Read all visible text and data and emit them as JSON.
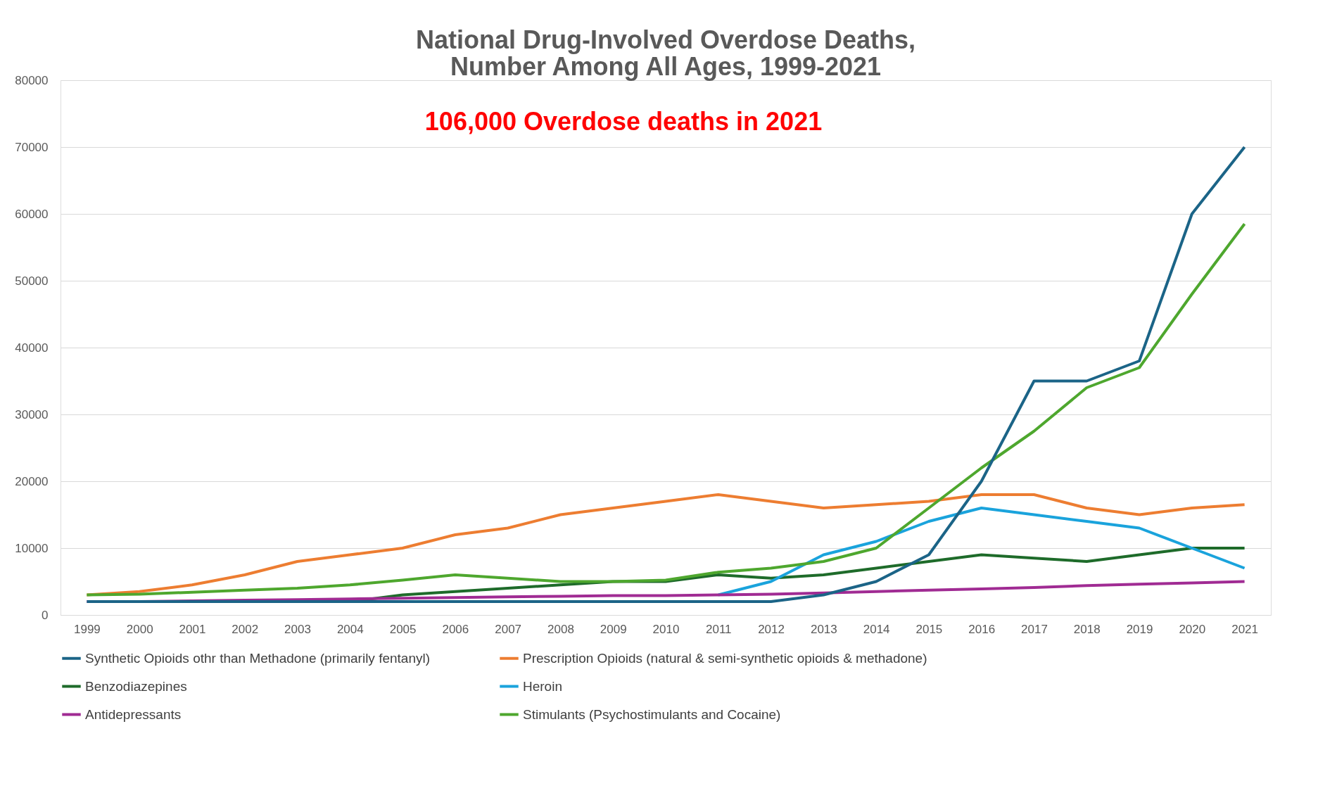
{
  "chart_data": {
    "type": "line",
    "title": [
      "National Drug-Involved Overdose Deaths,",
      "Number Among All Ages, 1999-2021"
    ],
    "annotations": [
      "106,000 Overdose deaths in 2021"
    ],
    "categories": [
      "1999",
      "2000",
      "2001",
      "2002",
      "2003",
      "2004",
      "2005",
      "2006",
      "2007",
      "2008",
      "2009",
      "2010",
      "2011",
      "2012",
      "2013",
      "2014",
      "2015",
      "2016",
      "2017",
      "2018",
      "2019",
      "2020",
      "2021"
    ],
    "series": [
      {
        "name": "Synthetic Opioids othr than Methadone (primarily fentanyl)",
        "color": "#1b6487",
        "values": [
          2000,
          2000,
          2000,
          2000,
          2000,
          2000,
          2000,
          2000,
          2000,
          2000,
          2000,
          2000,
          2000,
          2000,
          3000,
          5000,
          9000,
          20000,
          35000,
          35000,
          38000,
          60000,
          70000
        ]
      },
      {
        "name": "Prescription Opioids (natural & semi-synthetic opioids & methadone)",
        "color": "#ed7d31",
        "values": [
          3000,
          3500,
          4500,
          6000,
          8000,
          9000,
          10000,
          12000,
          13000,
          15000,
          16000,
          17000,
          18000,
          17000,
          16000,
          16500,
          17000,
          18000,
          18000,
          16000,
          15000,
          16000,
          16500
        ]
      },
      {
        "name": "Benzodiazepines",
        "color": "#1e6b2a",
        "values": [
          null,
          null,
          null,
          null,
          null,
          2000,
          3000,
          3500,
          4000,
          4500,
          5000,
          5000,
          6000,
          5500,
          6000,
          7000,
          8000,
          9000,
          8500,
          8000,
          9000,
          10000,
          10000
        ]
      },
      {
        "name": "Heroin",
        "color": "#1aa3dc",
        "values": [
          null,
          null,
          null,
          null,
          null,
          null,
          null,
          null,
          null,
          null,
          null,
          null,
          3000,
          5000,
          9000,
          11000,
          14000,
          16000,
          15000,
          14000,
          13000,
          10000,
          7000
        ]
      },
      {
        "name": "Antidepressants",
        "color": "#a02b93",
        "values": [
          2000,
          2000,
          2100,
          2200,
          2300,
          2400,
          2500,
          2600,
          2700,
          2800,
          2900,
          2900,
          3000,
          3100,
          3300,
          3500,
          3700,
          3900,
          4100,
          4400,
          4600,
          4800,
          5000
        ]
      },
      {
        "name": "Stimulants (Psychostimulants and Cocaine)",
        "color": "#4ea72e",
        "values": [
          3000,
          3100,
          3400,
          3700,
          4000,
          4500,
          5200,
          6000,
          5500,
          5000,
          5000,
          5200,
          6400,
          7000,
          8000,
          10000,
          16000,
          22000,
          27500,
          34000,
          37000,
          48000,
          58500
        ]
      }
    ],
    "ylim": [
      0,
      80000
    ],
    "yticks": [
      0,
      10000,
      20000,
      30000,
      40000,
      50000,
      60000,
      70000,
      80000
    ],
    "grid": "y",
    "legend": "bottom",
    "line_style": "solid",
    "marker": "none"
  }
}
